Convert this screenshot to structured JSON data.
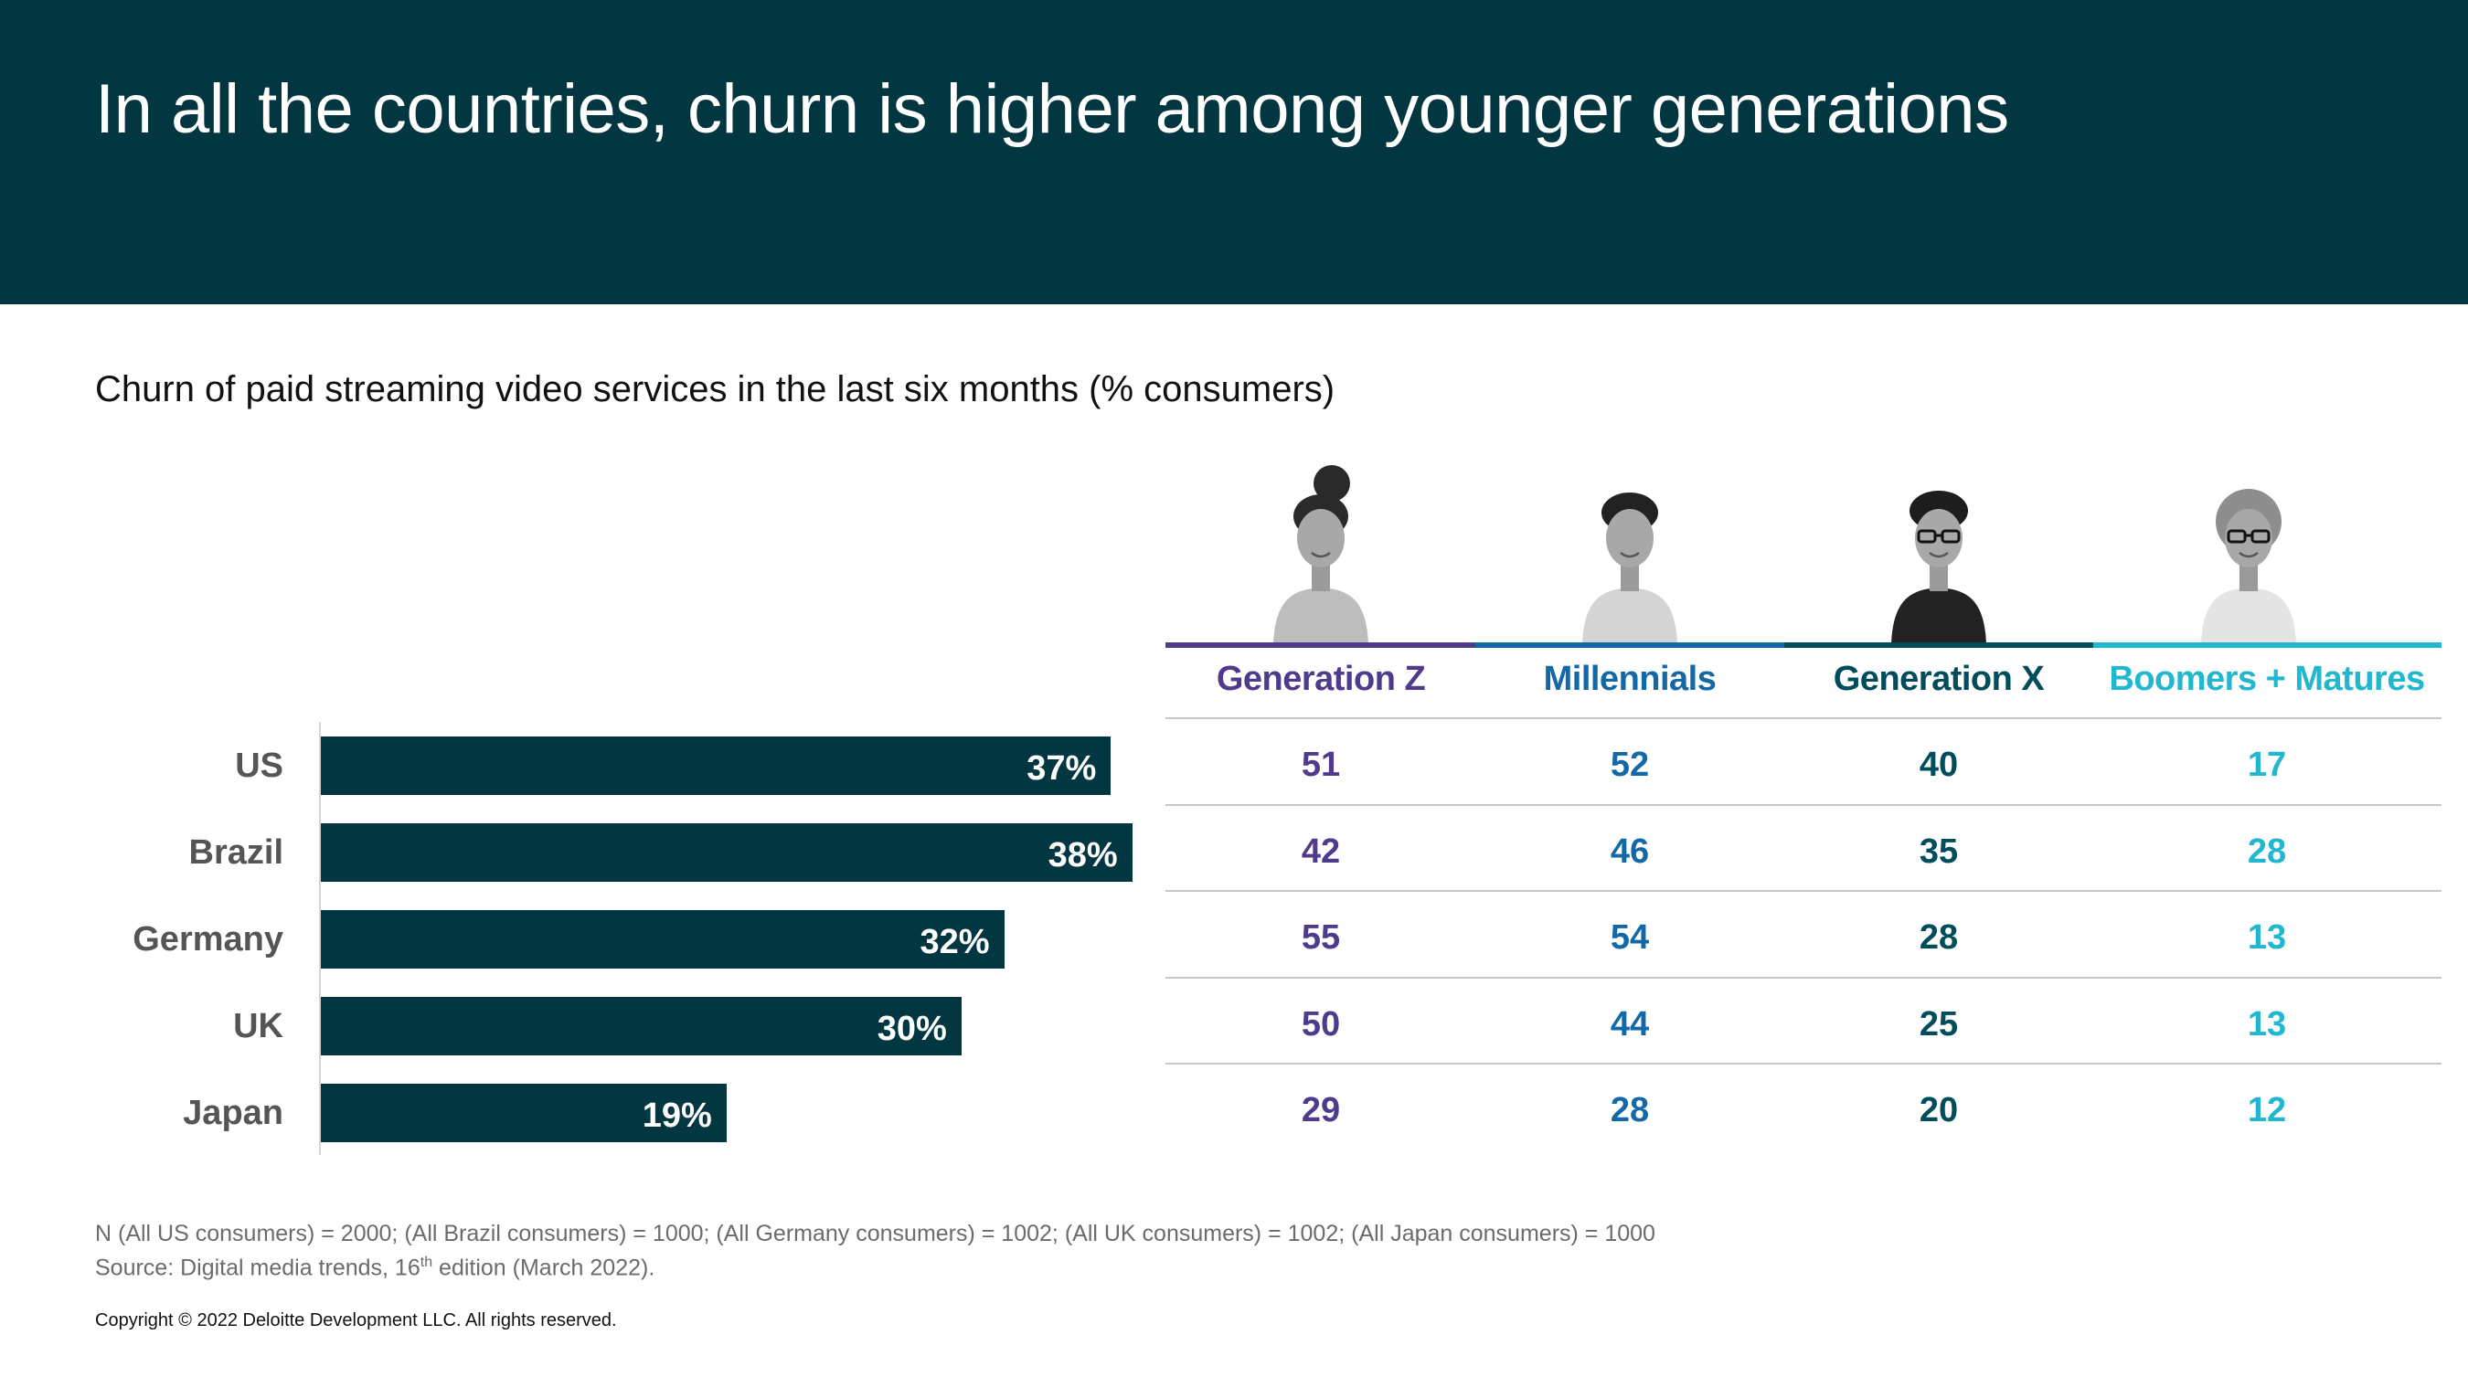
{
  "header": {
    "title": "In all the countries, churn is higher among younger generations"
  },
  "subtitle": "Churn of paid streaming video services in the last six months (% consumers)",
  "chart_data": [
    {
      "type": "bar",
      "orientation": "horizontal",
      "categories": [
        "US",
        "Brazil",
        "Germany",
        "UK",
        "Japan"
      ],
      "values": [
        37,
        38,
        32,
        30,
        19
      ],
      "value_labels": [
        "37%",
        "38%",
        "32%",
        "30%",
        "19%"
      ],
      "xlim": [
        0,
        38
      ],
      "bar_color": "#023741",
      "grid": false
    },
    {
      "type": "table",
      "columns": [
        "Generation Z",
        "Millennials",
        "Generation X",
        "Boomers + Matures"
      ],
      "column_colors": [
        "#4f3a8c",
        "#1368a8",
        "#014d5c",
        "#21b7cf"
      ],
      "rows": [
        "US",
        "Brazil",
        "Germany",
        "UK",
        "Japan"
      ],
      "values": [
        [
          51,
          52,
          40,
          17
        ],
        [
          42,
          46,
          35,
          28
        ],
        [
          55,
          54,
          28,
          13
        ],
        [
          50,
          44,
          25,
          13
        ],
        [
          29,
          28,
          20,
          12
        ]
      ]
    }
  ],
  "portraits": [
    {
      "icon": "portrait-generation-z-icon"
    },
    {
      "icon": "portrait-millennials-icon"
    },
    {
      "icon": "portrait-generation-x-icon"
    },
    {
      "icon": "portrait-boomers-matures-icon"
    }
  ],
  "footnote": {
    "line1": "N (All US consumers) = 2000; (All Brazil consumers) = 1000; (All Germany consumers) = 1002; (All UK consumers) = 1002; (All Japan consumers) = 1000",
    "line2_pre": "Source: Digital media trends, 16",
    "line2_sup": "th",
    "line2_post": " edition (March 2022)."
  },
  "copyright": "Copyright © 2022 Deloitte Development LLC. All rights reserved."
}
